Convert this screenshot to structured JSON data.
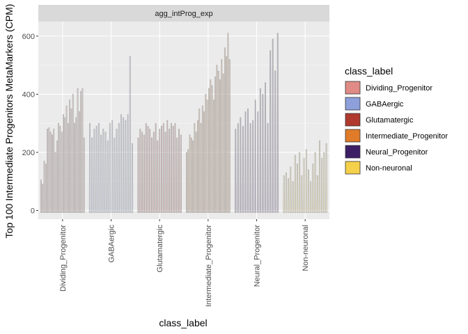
{
  "chart_data": {
    "type": "violin",
    "facet_title": "agg_intProg_exp",
    "xlabel": "class_label",
    "ylabel": "Top 100 Intermediate Progenitors MetaMarkers (CPM)",
    "ylim": [
      -30,
      650
    ],
    "yticks": [
      0,
      200,
      400,
      600
    ],
    "categories": [
      "Dividing_Progenitor",
      "GABAergic",
      "Glutamatergic",
      "Intermediate_Progenitor",
      "Neural_Progenitor",
      "Non-neuronal"
    ],
    "legend": {
      "title": "class_label",
      "position": "right",
      "items": [
        {
          "label": "Dividing_Progenitor",
          "color": "#E08B86"
        },
        {
          "label": "GABAergic",
          "color": "#8DA0DB"
        },
        {
          "label": "Glutamatergic",
          "color": "#B03A2E"
        },
        {
          "label": "Intermediate_Progenitor",
          "color": "#E07B2A"
        },
        {
          "label": "Neural_Progenitor",
          "color": "#3D1F66"
        },
        {
          "label": "Non-neuronal",
          "color": "#F5D04A"
        }
      ]
    },
    "series": [
      {
        "category": "Dividing_Progenitor",
        "approx_max_values": [
          105,
          90,
          170,
          160,
          280,
          285,
          270,
          260,
          280,
          200,
          240,
          300,
          290,
          270,
          330,
          320,
          360,
          300,
          380,
          350,
          400,
          300,
          320,
          420,
          340,
          410,
          420,
          250
        ]
      },
      {
        "category": "GABAergic",
        "approx_max_values": [
          300,
          250,
          280,
          290,
          300,
          260,
          280,
          270,
          240,
          300,
          310,
          250,
          280,
          300,
          330,
          320,
          310,
          330,
          530,
          230
        ]
      },
      {
        "category": "Glutamatergic",
        "approx_max_values": [
          250,
          280,
          270,
          260,
          300,
          290,
          280,
          250,
          270,
          300,
          240,
          280,
          290,
          300,
          270,
          310,
          280,
          300,
          290,
          300,
          250,
          280,
          260
        ]
      },
      {
        "category": "Intermediate_Progenitor",
        "approx_max_values": [
          200,
          210,
          260,
          250,
          240,
          300,
          270,
          310,
          350,
          300,
          360,
          340,
          400,
          380,
          420,
          450,
          430,
          380,
          460,
          500,
          480,
          450,
          520,
          470,
          560,
          530,
          610,
          520
        ]
      },
      {
        "category": "Neural_Progenitor",
        "approx_max_values": [
          280,
          300,
          320,
          290,
          340,
          350,
          300,
          310,
          380,
          340,
          420,
          400,
          440,
          300,
          550,
          590,
          480,
          610
        ]
      },
      {
        "category": "Non-neuronal",
        "approx_max_values": [
          120,
          130,
          110,
          150,
          100,
          190,
          160,
          200,
          120,
          180,
          210,
          140,
          100,
          160,
          200,
          120,
          240,
          180,
          200,
          230
        ]
      }
    ]
  }
}
